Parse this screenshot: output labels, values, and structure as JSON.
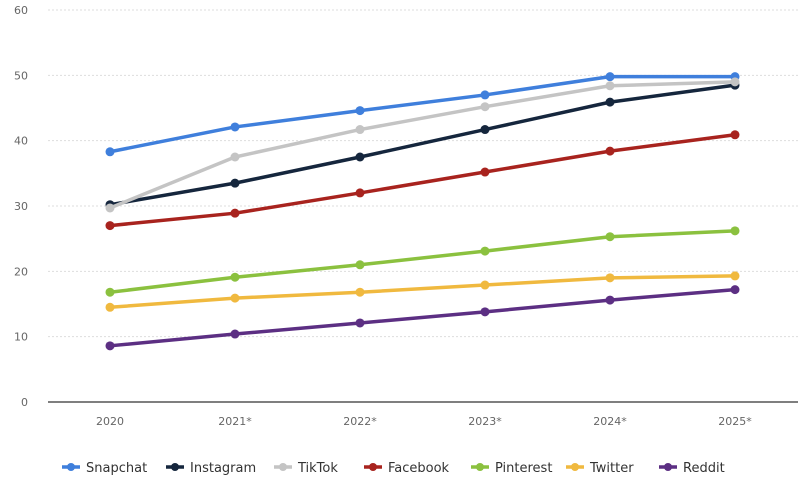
{
  "chart_data": {
    "type": "line",
    "title": "",
    "xlabel": "",
    "ylabel": "",
    "categories": [
      "2020",
      "2021*",
      "2022*",
      "2023*",
      "2024*",
      "2025*"
    ],
    "ylim": [
      0,
      60
    ],
    "yticks": [
      0,
      10,
      20,
      30,
      40,
      50,
      60
    ],
    "grid": true,
    "legend": "bottom",
    "series": [
      {
        "name": "Snapchat",
        "color": "#3f7fdc",
        "values": [
          38.3,
          42.1,
          44.6,
          47.0,
          49.8,
          49.8
        ]
      },
      {
        "name": "Instagram",
        "color": "#15263d",
        "values": [
          30.2,
          33.5,
          37.5,
          41.7,
          45.9,
          48.5
        ]
      },
      {
        "name": "TikTok",
        "color": "#c4c4c4",
        "values": [
          29.7,
          37.5,
          41.7,
          45.2,
          48.4,
          49.0
        ]
      },
      {
        "name": "Facebook",
        "color": "#a8231e",
        "values": [
          27.0,
          28.9,
          32.0,
          35.2,
          38.4,
          40.9
        ]
      },
      {
        "name": "Pinterest",
        "color": "#8bc13f",
        "values": [
          16.8,
          19.1,
          21.0,
          23.1,
          25.3,
          26.2
        ]
      },
      {
        "name": "Twitter",
        "color": "#f0b93f",
        "values": [
          14.5,
          15.9,
          16.8,
          17.9,
          19.0,
          19.3
        ]
      },
      {
        "name": "Reddit",
        "color": "#5c2f83",
        "values": [
          8.6,
          10.4,
          12.1,
          13.8,
          15.6,
          17.2
        ]
      }
    ]
  }
}
